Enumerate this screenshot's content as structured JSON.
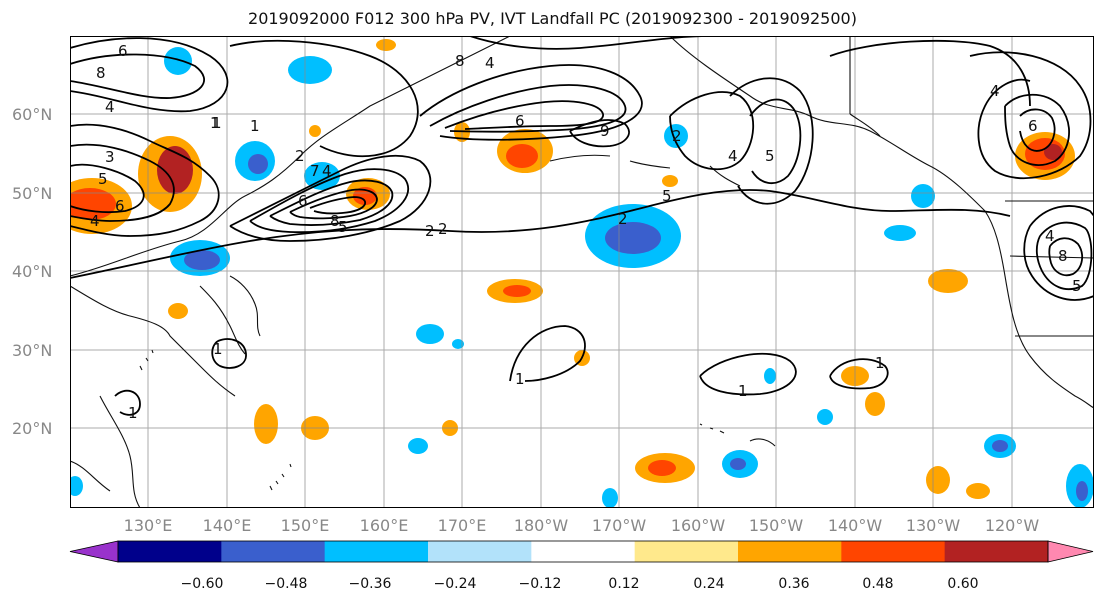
{
  "title": "2019092000 F012 300 hPa PV, IVT Landfall PC (2019092300 - 2019092500)",
  "map": {
    "lon_labels": [
      "130°E",
      "140°E",
      "150°E",
      "160°E",
      "170°E",
      "180°W",
      "170°W",
      "160°W",
      "150°W",
      "140°W",
      "130°W",
      "120°W"
    ],
    "lat_labels": [
      "20°N",
      "30°N",
      "40°N",
      "50°N",
      "60°N"
    ],
    "contour_labels": [
      "6",
      "8",
      "4",
      "3",
      "5",
      "6",
      "4",
      "2",
      "1",
      "2",
      "4",
      "5",
      "6",
      "7",
      "8",
      "2",
      "1",
      "6",
      "9",
      "8",
      "4",
      "5",
      "4",
      "2",
      "5",
      "2",
      "4",
      "4",
      "6",
      "8",
      "5",
      "1",
      "1",
      "1",
      "1",
      "1",
      "1"
    ]
  },
  "colorbar": {
    "tick_labels": [
      "−0.60",
      "−0.48",
      "−0.36",
      "−0.24",
      "−0.12",
      "0.12",
      "0.24",
      "0.36",
      "0.48",
      "0.60"
    ],
    "colors": [
      "#9932cc",
      "#00008b",
      "#3a5fcd",
      "#00bfff",
      "#b2e2fa",
      "#ffffff",
      "#ffe98c",
      "#ffa500",
      "#ff4500",
      "#b22222",
      "#ff88b0"
    ]
  }
}
